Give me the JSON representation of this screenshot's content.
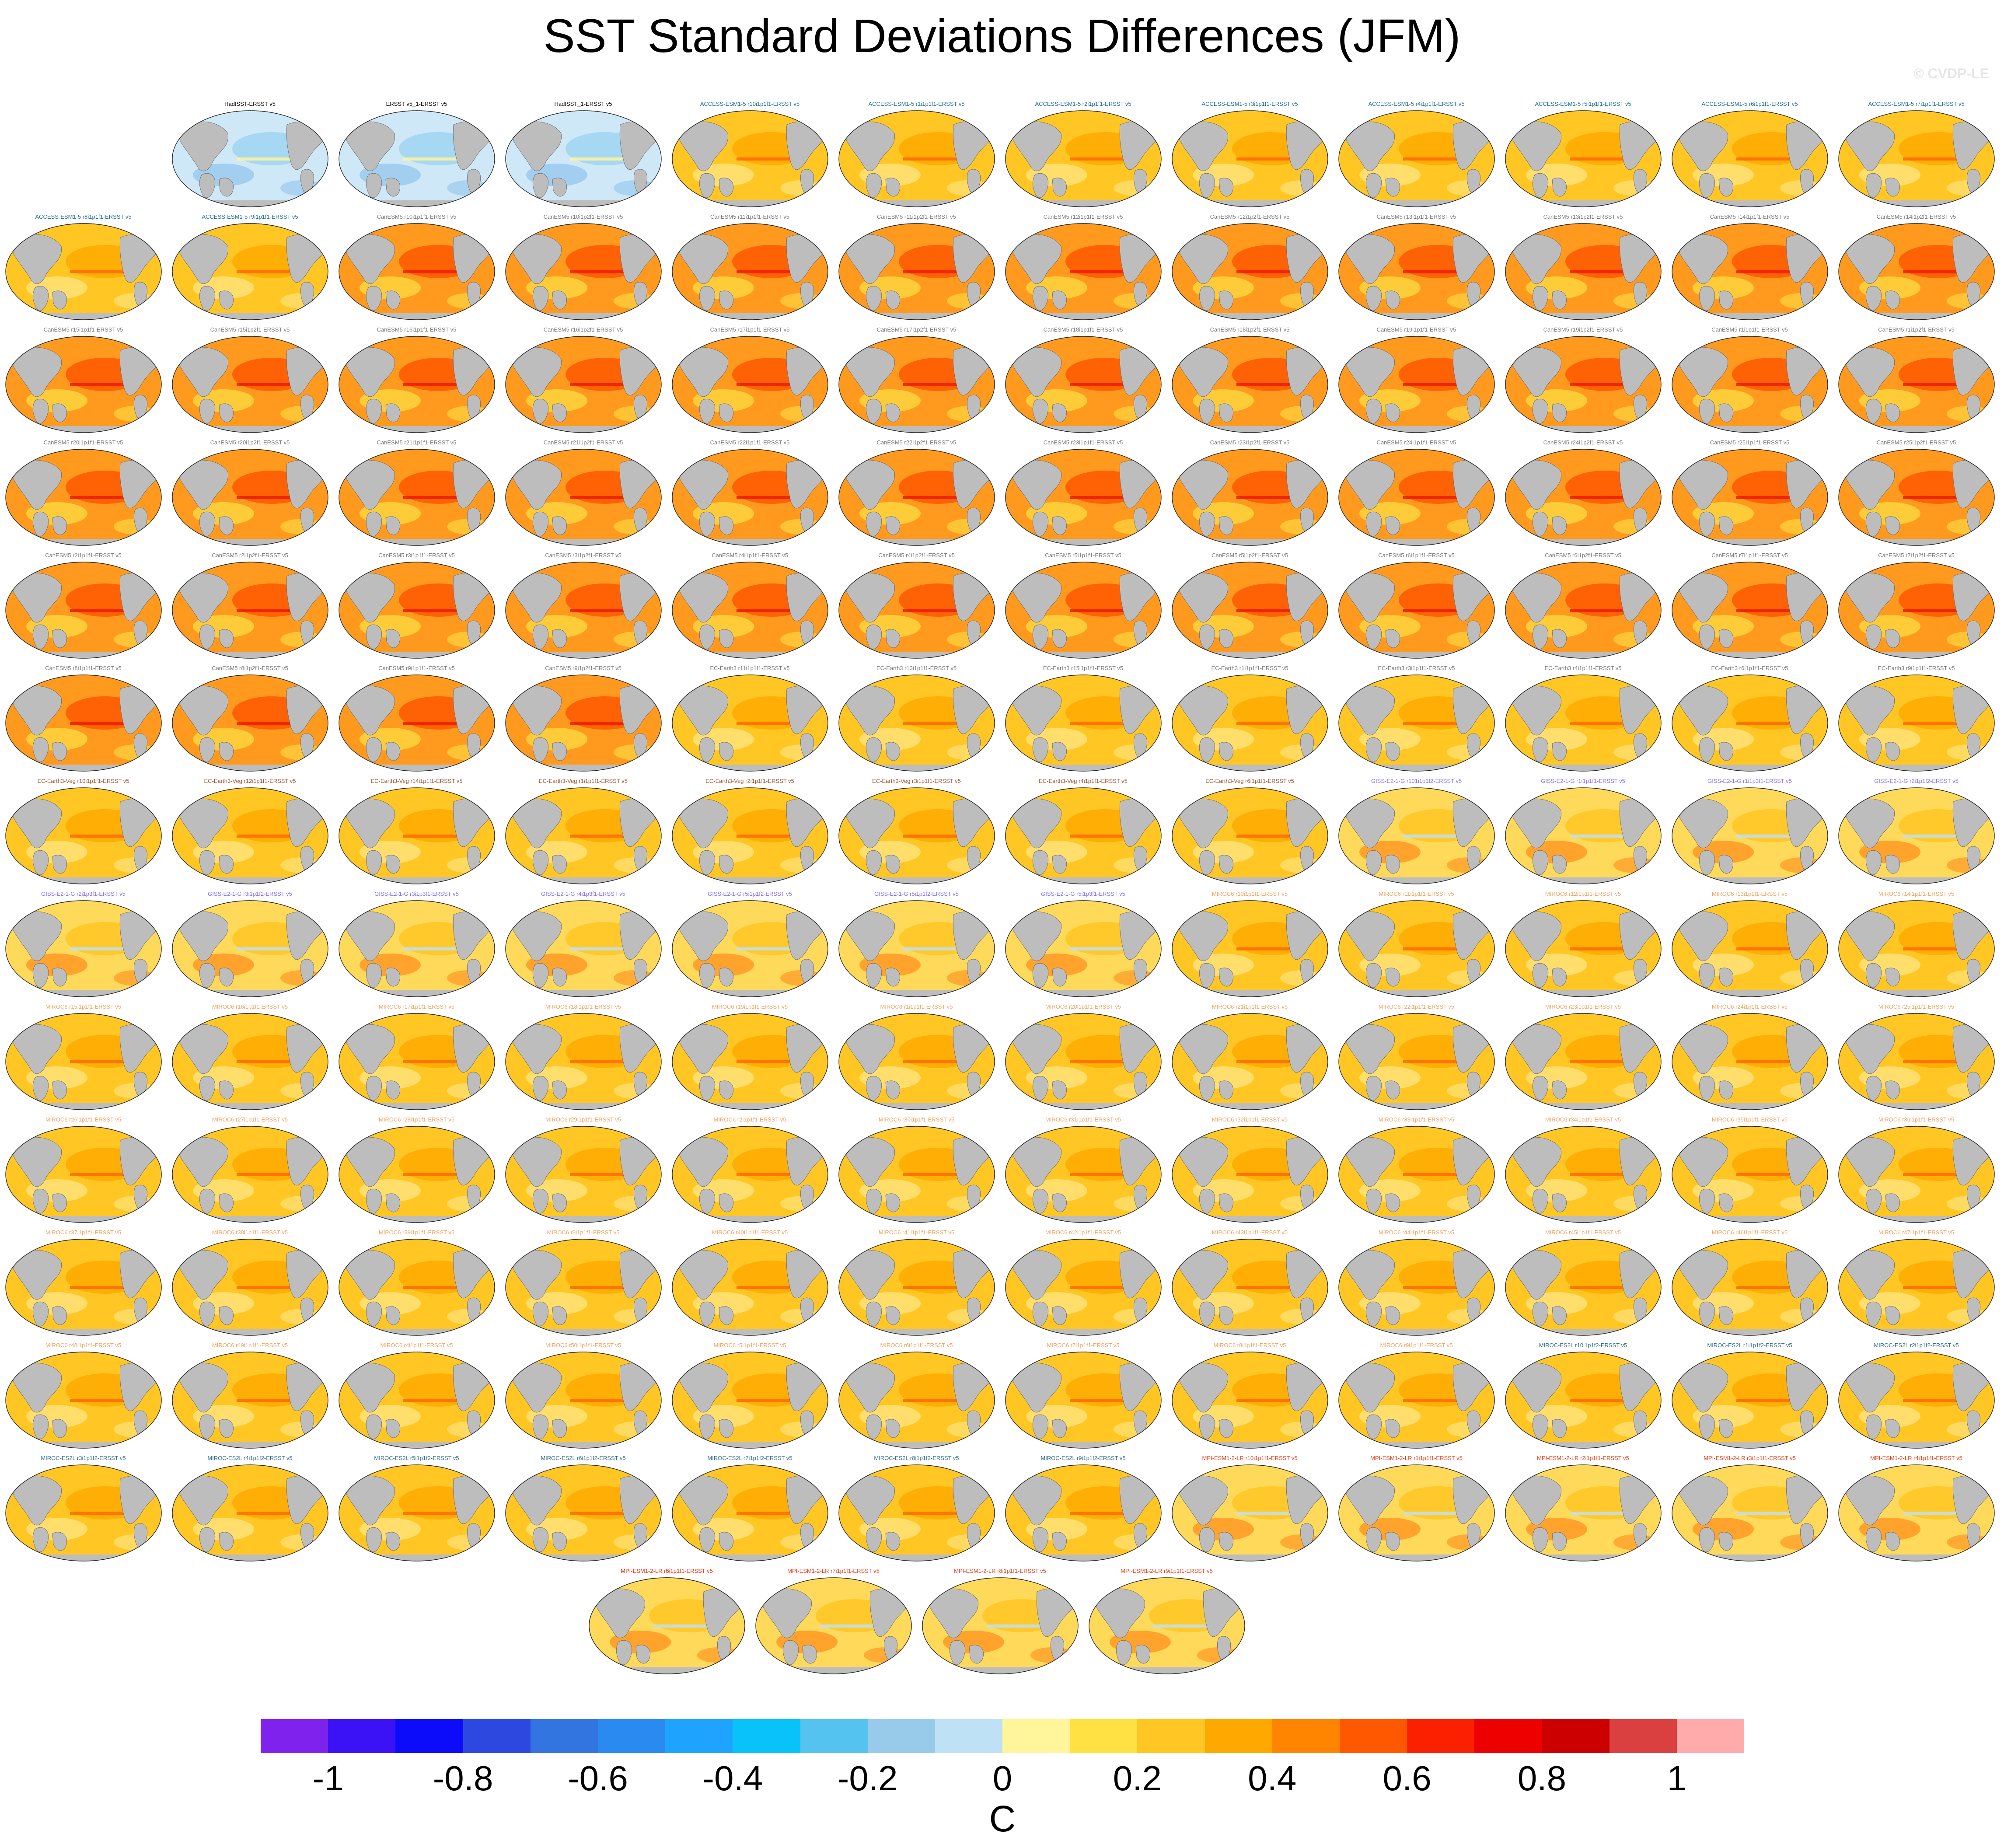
{
  "title": "SST Standard Deviations Differences (JFM)",
  "watermark": "© CVDP-LE",
  "colorbar": {
    "colors": [
      "#7f22ee",
      "#3b11f5",
      "#0c0cfa",
      "#2d48df",
      "#3274e0",
      "#2a8af0",
      "#1ea4ff",
      "#08c2f9",
      "#54c3ef",
      "#98cbea",
      "#bee1f5",
      "#fff59a",
      "#ffe144",
      "#ffc624",
      "#ffa900",
      "#ff8400",
      "#ff5800",
      "#fb2000",
      "#ec0000",
      "#cc0000",
      "#da4040",
      "#ffabab"
    ],
    "ticks": [
      "-1",
      "-0.8",
      "-0.6",
      "-0.4",
      "-0.2",
      "0",
      "0.2",
      "0.4",
      "0.6",
      "0.8",
      "1"
    ],
    "unit": "C"
  },
  "panels": [
    {
      "label": "HadISST-ERSST v5",
      "color": "#000000",
      "kind": "obs"
    },
    {
      "label": "ERSST v5_1-ERSST v5",
      "color": "#000000",
      "kind": "obs"
    },
    {
      "label": "HadISST_1-ERSST v5",
      "color": "#000000",
      "kind": "obs"
    },
    {
      "label": "ACCESS-ESM1-5 r10i1p1f1-ERSST v5",
      "color": "#1f6f99",
      "kind": "warm"
    },
    {
      "label": "ACCESS-ESM1-5 r1i1p1f1-ERSST v5",
      "color": "#1f6f99",
      "kind": "warm"
    },
    {
      "label": "ACCESS-ESM1-5 r2i1p1f1-ERSST v5",
      "color": "#1f6f99",
      "kind": "warm"
    },
    {
      "label": "ACCESS-ESM1-5 r3i1p1f1-ERSST v5",
      "color": "#1f6f99",
      "kind": "warm"
    },
    {
      "label": "ACCESS-ESM1-5 r4i1p1f1-ERSST v5",
      "color": "#1f6f99",
      "kind": "warm"
    },
    {
      "label": "ACCESS-ESM1-5 r5i1p1f1-ERSST v5",
      "color": "#1f6f99",
      "kind": "warm"
    },
    {
      "label": "ACCESS-ESM1-5 r6i1p1f1-ERSST v5",
      "color": "#1f6f99",
      "kind": "warm"
    },
    {
      "label": "ACCESS-ESM1-5 r7i1p1f1-ERSST v5",
      "color": "#1f6f99",
      "kind": "warm"
    },
    {
      "label": "ACCESS-ESM1-5 r8i1p1f1-ERSST v5",
      "color": "#1f6f99",
      "kind": "warm"
    },
    {
      "label": "ACCESS-ESM1-5 r9i1p1f1-ERSST v5",
      "color": "#1f6f99",
      "kind": "warm"
    },
    {
      "label": "CanESM5 r10i1p1f1-ERSST v5",
      "color": "#7a7a7a",
      "kind": "hot"
    },
    {
      "label": "CanESM5 r10i1p2f1-ERSST v5",
      "color": "#7a7a7a",
      "kind": "hot"
    },
    {
      "label": "CanESM5 r11i1p1f1-ERSST v5",
      "color": "#7a7a7a",
      "kind": "hot"
    },
    {
      "label": "CanESM5 r11i1p2f1-ERSST v5",
      "color": "#7a7a7a",
      "kind": "hot"
    },
    {
      "label": "CanESM5 r12i1p1f1-ERSST v5",
      "color": "#7a7a7a",
      "kind": "hot"
    },
    {
      "label": "CanESM5 r12i1p2f1-ERSST v5",
      "color": "#7a7a7a",
      "kind": "hot"
    },
    {
      "label": "CanESM5 r13i1p1f1-ERSST v5",
      "color": "#7a7a7a",
      "kind": "hot"
    },
    {
      "label": "CanESM5 r13i1p2f1-ERSST v5",
      "color": "#7a7a7a",
      "kind": "hot"
    },
    {
      "label": "CanESM5 r14i1p1f1-ERSST v5",
      "color": "#7a7a7a",
      "kind": "hot"
    },
    {
      "label": "CanESM5 r14i1p2f1-ERSST v5",
      "color": "#7a7a7a",
      "kind": "hot"
    },
    {
      "label": "CanESM5 r15i1p1f1-ERSST v5",
      "color": "#7a7a7a",
      "kind": "hot"
    },
    {
      "label": "CanESM5 r15i1p2f1-ERSST v5",
      "color": "#7a7a7a",
      "kind": "hot"
    },
    {
      "label": "CanESM5 r16i1p1f1-ERSST v5",
      "color": "#7a7a7a",
      "kind": "hot"
    },
    {
      "label": "CanESM5 r16i1p2f1-ERSST v5",
      "color": "#7a7a7a",
      "kind": "hot"
    },
    {
      "label": "CanESM5 r17i1p1f1-ERSST v5",
      "color": "#7a7a7a",
      "kind": "hot"
    },
    {
      "label": "CanESM5 r17i1p2f1-ERSST v5",
      "color": "#7a7a7a",
      "kind": "hot"
    },
    {
      "label": "CanESM5 r18i1p1f1-ERSST v5",
      "color": "#7a7a7a",
      "kind": "hot"
    },
    {
      "label": "CanESM5 r18i1p2f1-ERSST v5",
      "color": "#7a7a7a",
      "kind": "hot"
    },
    {
      "label": "CanESM5 r19i1p1f1-ERSST v5",
      "color": "#7a7a7a",
      "kind": "hot"
    },
    {
      "label": "CanESM5 r19i1p2f1-ERSST v5",
      "color": "#7a7a7a",
      "kind": "hot"
    },
    {
      "label": "CanESM5 r1i1p1f1-ERSST v5",
      "color": "#7a7a7a",
      "kind": "hot"
    },
    {
      "label": "CanESM5 r1i1p2f1-ERSST v5",
      "color": "#7a7a7a",
      "kind": "hot"
    },
    {
      "label": "CanESM5 r20i1p1f1-ERSST v5",
      "color": "#7a7a7a",
      "kind": "hot"
    },
    {
      "label": "CanESM5 r20i1p2f1-ERSST v5",
      "color": "#7a7a7a",
      "kind": "hot"
    },
    {
      "label": "CanESM5 r21i1p1f1-ERSST v5",
      "color": "#7a7a7a",
      "kind": "hot"
    },
    {
      "label": "CanESM5 r21i1p2f1-ERSST v5",
      "color": "#7a7a7a",
      "kind": "hot"
    },
    {
      "label": "CanESM5 r22i1p1f1-ERSST v5",
      "color": "#7a7a7a",
      "kind": "hot"
    },
    {
      "label": "CanESM5 r22i1p2f1-ERSST v5",
      "color": "#7a7a7a",
      "kind": "hot"
    },
    {
      "label": "CanESM5 r23i1p1f1-ERSST v5",
      "color": "#7a7a7a",
      "kind": "hot"
    },
    {
      "label": "CanESM5 r23i1p2f1-ERSST v5",
      "color": "#7a7a7a",
      "kind": "hot"
    },
    {
      "label": "CanESM5 r24i1p1f1-ERSST v5",
      "color": "#7a7a7a",
      "kind": "hot"
    },
    {
      "label": "CanESM5 r24i1p2f1-ERSST v5",
      "color": "#7a7a7a",
      "kind": "hot"
    },
    {
      "label": "CanESM5 r25i1p1f1-ERSST v5",
      "color": "#7a7a7a",
      "kind": "hot"
    },
    {
      "label": "CanESM5 r25i1p2f1-ERSST v5",
      "color": "#7a7a7a",
      "kind": "hot"
    },
    {
      "label": "CanESM5 r2i1p1f1-ERSST v5",
      "color": "#7a7a7a",
      "kind": "hot"
    },
    {
      "label": "CanESM5 r2i1p2f1-ERSST v5",
      "color": "#7a7a7a",
      "kind": "hot"
    },
    {
      "label": "CanESM5 r3i1p1f1-ERSST v5",
      "color": "#7a7a7a",
      "kind": "hot"
    },
    {
      "label": "CanESM5 r3i1p2f1-ERSST v5",
      "color": "#7a7a7a",
      "kind": "hot"
    },
    {
      "label": "CanESM5 r4i1p1f1-ERSST v5",
      "color": "#7a7a7a",
      "kind": "hot"
    },
    {
      "label": "CanESM5 r4i1p2f1-ERSST v5",
      "color": "#7a7a7a",
      "kind": "hot"
    },
    {
      "label": "CanESM5 r5i1p1f1-ERSST v5",
      "color": "#7a7a7a",
      "kind": "hot"
    },
    {
      "label": "CanESM5 r5i1p2f1-ERSST v5",
      "color": "#7a7a7a",
      "kind": "hot"
    },
    {
      "label": "CanESM5 r6i1p1f1-ERSST v5",
      "color": "#7a7a7a",
      "kind": "hot"
    },
    {
      "label": "CanESM5 r6i1p2f1-ERSST v5",
      "color": "#7a7a7a",
      "kind": "hot"
    },
    {
      "label": "CanESM5 r7i1p1f1-ERSST v5",
      "color": "#7a7a7a",
      "kind": "hot"
    },
    {
      "label": "CanESM5 r7i1p2f1-ERSST v5",
      "color": "#7a7a7a",
      "kind": "hot"
    },
    {
      "label": "CanESM5 r8i1p1f1-ERSST v5",
      "color": "#7a7a7a",
      "kind": "hot"
    },
    {
      "label": "CanESM5 r8i1p2f1-ERSST v5",
      "color": "#7a7a7a",
      "kind": "hot"
    },
    {
      "label": "CanESM5 r9i1p1f1-ERSST v5",
      "color": "#7a7a7a",
      "kind": "hot"
    },
    {
      "label": "CanESM5 r9i1p2f1-ERSST v5",
      "color": "#7a7a7a",
      "kind": "hot"
    },
    {
      "label": "EC-Earth3 r11i1p1f1-ERSST v5",
      "color": "#7a7a7a",
      "kind": "warm"
    },
    {
      "label": "EC-Earth3 r13i1p1f1-ERSST v5",
      "color": "#7a7a7a",
      "kind": "warm"
    },
    {
      "label": "EC-Earth3 r15i1p1f1-ERSST v5",
      "color": "#7a7a7a",
      "kind": "warm"
    },
    {
      "label": "EC-Earth3 r1i1p1f1-ERSST v5",
      "color": "#7a7a7a",
      "kind": "warm"
    },
    {
      "label": "EC-Earth3 r3i1p1f1-ERSST v5",
      "color": "#7a7a7a",
      "kind": "warm"
    },
    {
      "label": "EC-Earth3 r4i1p1f1-ERSST v5",
      "color": "#7a7a7a",
      "kind": "warm"
    },
    {
      "label": "EC-Earth3 r6i1p1f1-ERSST v5",
      "color": "#7a7a7a",
      "kind": "warm"
    },
    {
      "label": "EC-Earth3 r9i1p1f1-ERSST v5",
      "color": "#7a7a7a",
      "kind": "warm"
    },
    {
      "label": "EC-Earth3-Veg r10i1p1f1-ERSST v5",
      "color": "#a0522d",
      "kind": "warm"
    },
    {
      "label": "EC-Earth3-Veg r12i1p1f1-ERSST v5",
      "color": "#a0522d",
      "kind": "warm"
    },
    {
      "label": "EC-Earth3-Veg r14i1p1f1-ERSST v5",
      "color": "#a0522d",
      "kind": "warm"
    },
    {
      "label": "EC-Earth3-Veg r1i1p1f1-ERSST v5",
      "color": "#a0522d",
      "kind": "warm"
    },
    {
      "label": "EC-Earth3-Veg r2i1p1f1-ERSST v5",
      "color": "#a0522d",
      "kind": "warm"
    },
    {
      "label": "EC-Earth3-Veg r3i1p1f1-ERSST v5",
      "color": "#a0522d",
      "kind": "warm"
    },
    {
      "label": "EC-Earth3-Veg r4i1p1f1-ERSST v5",
      "color": "#a0522d",
      "kind": "warm"
    },
    {
      "label": "EC-Earth3-Veg r6i1p1f1-ERSST v5",
      "color": "#a0522d",
      "kind": "warm"
    },
    {
      "label": "GISS-E2-1-G r101i1p1f2-ERSST v5",
      "color": "#8470ff",
      "kind": "mild"
    },
    {
      "label": "GISS-E2-1-G r1i1p1f1-ERSST v5",
      "color": "#8470ff",
      "kind": "mild"
    },
    {
      "label": "GISS-E2-1-G r1i1p3f1-ERSST v5",
      "color": "#8470ff",
      "kind": "mild"
    },
    {
      "label": "GISS-E2-1-G r2i1p1f2-ERSST v5",
      "color": "#8470ff",
      "kind": "mild"
    },
    {
      "label": "GISS-E2-1-G r2i1p3f1-ERSST v5",
      "color": "#8470ff",
      "kind": "mild"
    },
    {
      "label": "GISS-E2-1-G r3i1p1f2-ERSST v5",
      "color": "#8470ff",
      "kind": "mild"
    },
    {
      "label": "GISS-E2-1-G r3i1p3f1-ERSST v5",
      "color": "#8470ff",
      "kind": "mild"
    },
    {
      "label": "GISS-E2-1-G r4i1p3f1-ERSST v5",
      "color": "#8470ff",
      "kind": "mild"
    },
    {
      "label": "GISS-E2-1-G r5i1p1f2-ERSST v5",
      "color": "#8470ff",
      "kind": "mild"
    },
    {
      "label": "GISS-E2-1-G r5i1p1f2-ERSST v5",
      "color": "#8470ff",
      "kind": "mild"
    },
    {
      "label": "GISS-E2-1-G r5i1p3f1-ERSST v5",
      "color": "#8470ff",
      "kind": "mild"
    },
    {
      "label": "MIROC6 r10i1p1f1-ERSST v5",
      "color": "#f4a460",
      "kind": "warm"
    },
    {
      "label": "MIROC6 r11i1p1f1-ERSST v5",
      "color": "#f4a460",
      "kind": "warm"
    },
    {
      "label": "MIROC6 r12i1p1f1-ERSST v5",
      "color": "#f4a460",
      "kind": "warm"
    },
    {
      "label": "MIROC6 r13i1p1f1-ERSST v5",
      "color": "#f4a460",
      "kind": "warm"
    },
    {
      "label": "MIROC6 r14i1p1f1-ERSST v5",
      "color": "#f4a460",
      "kind": "warm"
    },
    {
      "label": "MIROC6 r15i1p1f1-ERSST v5",
      "color": "#f4a460",
      "kind": "warm"
    },
    {
      "label": "MIROC6 r16i1p1f1-ERSST v5",
      "color": "#f4a460",
      "kind": "warm"
    },
    {
      "label": "MIROC6 r17i1p1f1-ERSST v5",
      "color": "#f4a460",
      "kind": "warm"
    },
    {
      "label": "MIROC6 r18i1p1f1-ERSST v5",
      "color": "#f4a460",
      "kind": "warm"
    },
    {
      "label": "MIROC6 r19i1p1f1-ERSST v5",
      "color": "#f4a460",
      "kind": "warm"
    },
    {
      "label": "MIROC6 r1i1p1f1-ERSST v5",
      "color": "#f4a460",
      "kind": "warm"
    },
    {
      "label": "MIROC6 r20i1p1f1-ERSST v5",
      "color": "#f4a460",
      "kind": "warm"
    },
    {
      "label": "MIROC6 r21i1p1f1-ERSST v5",
      "color": "#f4a460",
      "kind": "warm"
    },
    {
      "label": "MIROC6 r22i1p1f1-ERSST v5",
      "color": "#f4a460",
      "kind": "warm"
    },
    {
      "label": "MIROC6 r23i1p1f1-ERSST v5",
      "color": "#f4a460",
      "kind": "warm"
    },
    {
      "label": "MIROC6 r24i1p1f1-ERSST v5",
      "color": "#f4a460",
      "kind": "warm"
    },
    {
      "label": "MIROC6 r25i1p1f1-ERSST v5",
      "color": "#f4a460",
      "kind": "warm"
    },
    {
      "label": "MIROC6 r26i1p1f1-ERSST v5",
      "color": "#f4a460",
      "kind": "warm"
    },
    {
      "label": "MIROC6 r27i1p1f1-ERSST v5",
      "color": "#f4a460",
      "kind": "warm"
    },
    {
      "label": "MIROC6 r28i1p1f1-ERSST v5",
      "color": "#f4a460",
      "kind": "warm"
    },
    {
      "label": "MIROC6 r29i1p1f1-ERSST v5",
      "color": "#f4a460",
      "kind": "warm"
    },
    {
      "label": "MIROC6 r2i1p1f1-ERSST v5",
      "color": "#f4a460",
      "kind": "warm"
    },
    {
      "label": "MIROC6 r30i1p1f1-ERSST v5",
      "color": "#f4a460",
      "kind": "warm"
    },
    {
      "label": "MIROC6 r31i1p1f1-ERSST v5",
      "color": "#f4a460",
      "kind": "warm"
    },
    {
      "label": "MIROC6 r32i1p1f1-ERSST v5",
      "color": "#f4a460",
      "kind": "warm"
    },
    {
      "label": "MIROC6 r33i1p1f1-ERSST v5",
      "color": "#f4a460",
      "kind": "warm"
    },
    {
      "label": "MIROC6 r34i1p1f1-ERSST v5",
      "color": "#f4a460",
      "kind": "warm"
    },
    {
      "label": "MIROC6 r35i1p1f1-ERSST v5",
      "color": "#f4a460",
      "kind": "warm"
    },
    {
      "label": "MIROC6 r36i1p1f1-ERSST v5",
      "color": "#f4a460",
      "kind": "warm"
    },
    {
      "label": "MIROC6 r37i1p1f1-ERSST v5",
      "color": "#f4a460",
      "kind": "warm"
    },
    {
      "label": "MIROC6 r38i1p1f1-ERSST v5",
      "color": "#f4a460",
      "kind": "warm"
    },
    {
      "label": "MIROC6 r39i1p1f1-ERSST v5",
      "color": "#f4a460",
      "kind": "warm"
    },
    {
      "label": "MIROC6 r3i1p1f1-ERSST v5",
      "color": "#f4a460",
      "kind": "warm"
    },
    {
      "label": "MIROC6 r40i1p1f1-ERSST v5",
      "color": "#f4a460",
      "kind": "warm"
    },
    {
      "label": "MIROC6 r41i1p1f1-ERSST v5",
      "color": "#f4a460",
      "kind": "warm"
    },
    {
      "label": "MIROC6 r42i1p1f1-ERSST v5",
      "color": "#f4a460",
      "kind": "warm"
    },
    {
      "label": "MIROC6 r43i1p1f1-ERSST v5",
      "color": "#f4a460",
      "kind": "warm"
    },
    {
      "label": "MIROC6 r44i1p1f1-ERSST v5",
      "color": "#f4a460",
      "kind": "warm"
    },
    {
      "label": "MIROC6 r45i1p1f1-ERSST v5",
      "color": "#f4a460",
      "kind": "warm"
    },
    {
      "label": "MIROC6 r46i1p1f1-ERSST v5",
      "color": "#f4a460",
      "kind": "warm"
    },
    {
      "label": "MIROC6 r47i1p1f1-ERSST v5",
      "color": "#f4a460",
      "kind": "warm"
    },
    {
      "label": "MIROC6 r48i1p1f1-ERSST v5",
      "color": "#f4a460",
      "kind": "warm"
    },
    {
      "label": "MIROC6 r49i1p1f1-ERSST v5",
      "color": "#f4a460",
      "kind": "warm"
    },
    {
      "label": "MIROC6 r4i1p1f1-ERSST v5",
      "color": "#f4a460",
      "kind": "warm"
    },
    {
      "label": "MIROC6 r50i1p1f1-ERSST v5",
      "color": "#f4a460",
      "kind": "warm"
    },
    {
      "label": "MIROC6 r5i1p1f1-ERSST v5",
      "color": "#f4a460",
      "kind": "warm"
    },
    {
      "label": "MIROC6 r6i1p1f1-ERSST v5",
      "color": "#f4a460",
      "kind": "warm"
    },
    {
      "label": "MIROC6 r7i1p1f1-ERSST v5",
      "color": "#f4a460",
      "kind": "warm"
    },
    {
      "label": "MIROC6 r8i1p1f1-ERSST v5",
      "color": "#f4a460",
      "kind": "warm"
    },
    {
      "label": "MIROC6 r9i1p1f1-ERSST v5",
      "color": "#f4a460",
      "kind": "warm"
    },
    {
      "label": "MIROC-ES2L r10i1p1f2-ERSST v5",
      "color": "#2f6f8f",
      "kind": "warm"
    },
    {
      "label": "MIROC-ES2L r1i1p1f2-ERSST v5",
      "color": "#2f6f8f",
      "kind": "warm"
    },
    {
      "label": "MIROC-ES2L r2i1p1f2-ERSST v5",
      "color": "#2f6f8f",
      "kind": "warm"
    },
    {
      "label": "MIROC-ES2L r3i1p1f2-ERSST v5",
      "color": "#2f6f8f",
      "kind": "warm"
    },
    {
      "label": "MIROC-ES2L r4i1p1f2-ERSST v5",
      "color": "#2f6f8f",
      "kind": "warm"
    },
    {
      "label": "MIROC-ES2L r5i1p1f2-ERSST v5",
      "color": "#2f6f8f",
      "kind": "warm"
    },
    {
      "label": "MIROC-ES2L r6i1p1f2-ERSST v5",
      "color": "#2f6f8f",
      "kind": "warm"
    },
    {
      "label": "MIROC-ES2L r7i1p1f2-ERSST v5",
      "color": "#2f6f8f",
      "kind": "warm"
    },
    {
      "label": "MIROC-ES2L r8i1p1f2-ERSST v5",
      "color": "#2f6f8f",
      "kind": "warm"
    },
    {
      "label": "MIROC-ES2L r9i1p1f2-ERSST v5",
      "color": "#2f6f8f",
      "kind": "warm"
    },
    {
      "label": "MPI-ESM1-2-LR r10i1p1f1-ERSST v5",
      "color": "#e8401c",
      "kind": "mild"
    },
    {
      "label": "MPI-ESM1-2-LR r1i1p1f1-ERSST v5",
      "color": "#e8401c",
      "kind": "mild"
    },
    {
      "label": "MPI-ESM1-2-LR r2i1p1f1-ERSST v5",
      "color": "#e8401c",
      "kind": "mild"
    },
    {
      "label": "MPI-ESM1-2-LR r3i1p1f1-ERSST v5",
      "color": "#e8401c",
      "kind": "mild"
    },
    {
      "label": "MPI-ESM1-2-LR r4i1p1f1-ERSST v5",
      "color": "#e8401c",
      "kind": "mild"
    },
    {
      "label": "MPI-ESM1-2-LR r5i1p1f1-ERSST v5",
      "color": "#e8401c",
      "kind": "mild"
    },
    {
      "label": "MPI-ESM1-2-LR r6i1p1f1-ERSST v5",
      "color": "#e8401c",
      "kind": "mild"
    },
    {
      "label": "MPI-ESM1-2-LR r7i1p1f1-ERSST v5",
      "color": "#e8401c",
      "kind": "mild"
    },
    {
      "label": "MPI-ESM1-2-LR r8i1p1f1-ERSST v5",
      "color": "#e8401c",
      "kind": "mild"
    },
    {
      "label": "MPI-ESM1-2-LR r9i1p1f1-ERSST v5",
      "color": "#e8401c",
      "kind": "mild"
    }
  ]
}
